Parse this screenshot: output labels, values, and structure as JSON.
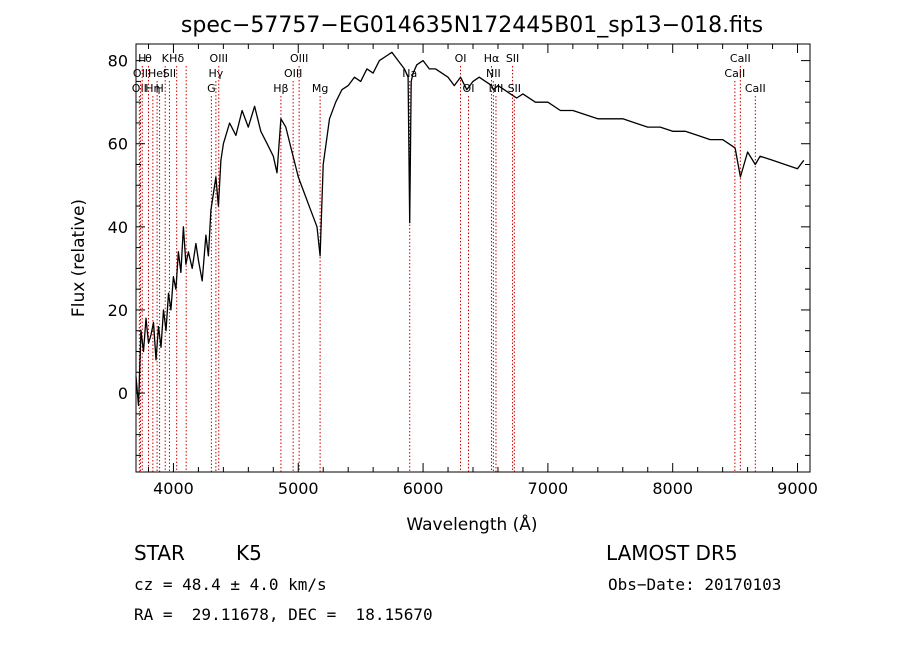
{
  "chart_data": {
    "type": "line",
    "title": "spec−57757−EG014635N172445B01_sp13−018.fits",
    "xlabel": "Wavelength (Å)",
    "ylabel": "Flux (relative)",
    "xlim": [
      3700,
      9100
    ],
    "ylim": [
      -19,
      84
    ],
    "xticks": [
      4000,
      5000,
      6000,
      7000,
      8000,
      9000
    ],
    "yticks": [
      0,
      20,
      40,
      60,
      80
    ],
    "grid": false,
    "line_color": "#000000",
    "marker_color": "#cc0000",
    "series": [
      {
        "x": [
          3700,
          3720,
          3740,
          3760,
          3780,
          3800,
          3820,
          3840,
          3860,
          3880,
          3900,
          3920,
          3940,
          3960,
          3980,
          4000,
          4020,
          4040,
          4060,
          4080,
          4100,
          4120,
          4150,
          4180,
          4200,
          4230,
          4260,
          4280,
          4300,
          4320,
          4340,
          4360,
          4380,
          4400,
          4450,
          4500,
          4550,
          4600,
          4650,
          4700,
          4750,
          4800,
          4830,
          4861,
          4900,
          4950,
          5000,
          5050,
          5100,
          5150,
          5175,
          5200,
          5250,
          5300,
          5350,
          5400,
          5450,
          5500,
          5550,
          5600,
          5650,
          5700,
          5750,
          5800,
          5850,
          5880,
          5893,
          5905,
          5920,
          5950,
          6000,
          6050,
          6100,
          6150,
          6200,
          6250,
          6300,
          6350,
          6400,
          6450,
          6500,
          6550,
          6563,
          6600,
          6650,
          6700,
          6750,
          6800,
          6900,
          7000,
          7100,
          7200,
          7300,
          7400,
          7500,
          7600,
          7700,
          7800,
          7900,
          8000,
          8100,
          8200,
          8300,
          8400,
          8500,
          8542,
          8600,
          8662,
          8700,
          8800,
          8900,
          9000,
          9050
        ],
        "y": [
          4,
          -3,
          15,
          10,
          18,
          12,
          14,
          17,
          8,
          16,
          11,
          20,
          15,
          24,
          20,
          28,
          25,
          34,
          29,
          40,
          31,
          34,
          30,
          36,
          32,
          27,
          38,
          33,
          44,
          48,
          52,
          45,
          56,
          60,
          65,
          62,
          68,
          64,
          69,
          63,
          60,
          57,
          53,
          66,
          64,
          58,
          52,
          48,
          44,
          40,
          33,
          55,
          66,
          70,
          73,
          74,
          76,
          75,
          78,
          77,
          80,
          81,
          82,
          80,
          78,
          76,
          41,
          75,
          77,
          79,
          80,
          78,
          78,
          77,
          76,
          74,
          76,
          73,
          75,
          76,
          75,
          74,
          73,
          74,
          73,
          72,
          71,
          72,
          70,
          70,
          68,
          68,
          67,
          66,
          66,
          66,
          65,
          64,
          64,
          63,
          63,
          62,
          61,
          61,
          59,
          52,
          58,
          55,
          57,
          56,
          55,
          54,
          56
        ]
      }
    ],
    "lines": [
      {
        "w": 3727,
        "label": "OII",
        "row": 2
      },
      {
        "w": 3736,
        "label": "OII",
        "row": 1
      },
      {
        "w": 3750,
        "label": "H",
        "row": 0
      },
      {
        "w": 3800,
        "label": "θ",
        "row": 0
      },
      {
        "w": 3835,
        "label": "Hη",
        "row": 2
      },
      {
        "w": 3869,
        "label": "Hel",
        "row": 1
      },
      {
        "w": 3889,
        "label": "H",
        "row": 2
      },
      {
        "w": 3934,
        "label": "K",
        "row": 0
      },
      {
        "w": 3968,
        "label": "SII",
        "row": 1
      },
      {
        "w": 4026,
        "label": "Hδ",
        "row": 0
      },
      {
        "w": 4102,
        "label": "",
        "row": 0
      },
      {
        "w": 4304,
        "label": "G",
        "row": 2
      },
      {
        "w": 4340,
        "label": "Hγ",
        "row": 1
      },
      {
        "w": 4363,
        "label": "OIII",
        "row": 0
      },
      {
        "w": 4861,
        "label": "Hβ",
        "row": 2
      },
      {
        "w": 4959,
        "label": "OIII",
        "row": 1
      },
      {
        "w": 5007,
        "label": "OIII",
        "row": 0
      },
      {
        "w": 5175,
        "label": "Mg",
        "row": 2
      },
      {
        "w": 5893,
        "label": "Na",
        "row": 1
      },
      {
        "w": 6300,
        "label": "OI",
        "row": 0
      },
      {
        "w": 6364,
        "label": "OI",
        "row": 2
      },
      {
        "w": 6548,
        "label": "Hα",
        "row": 0
      },
      {
        "w": 6563,
        "label": "NII",
        "row": 1
      },
      {
        "w": 6584,
        "label": "NII",
        "row": 2
      },
      {
        "w": 6717,
        "label": "SII",
        "row": 0
      },
      {
        "w": 6731,
        "label": "SII",
        "row": 2
      },
      {
        "w": 8498,
        "label": "CaII",
        "row": 1
      },
      {
        "w": 8542,
        "label": "CaII",
        "row": 0
      },
      {
        "w": 8662,
        "label": "CaII",
        "row": 2
      }
    ]
  },
  "info": {
    "class": "STAR",
    "subclass": "K5",
    "survey": "LAMOST DR5",
    "cz": "cz = 48.4 ± 4.0 km/s",
    "obs_date": "Obs−Date: 20170103",
    "coords": "RA =  29.11678, DEC =  18.15670"
  }
}
